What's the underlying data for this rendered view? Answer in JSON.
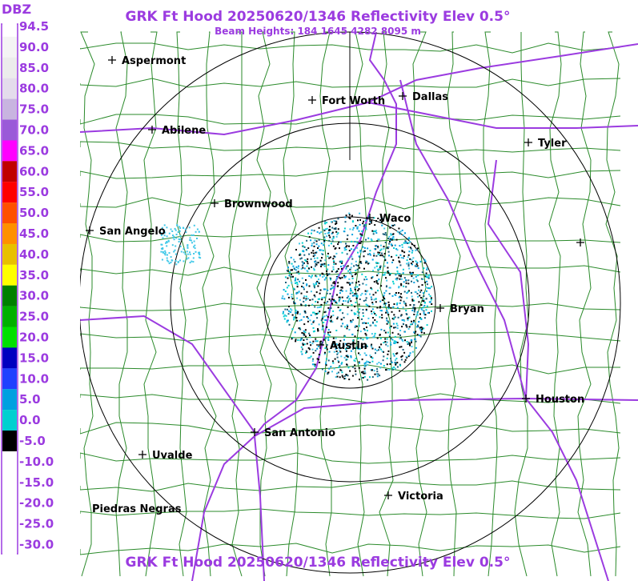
{
  "header": {
    "title": "GRK Ft Hood 20250620/1346 Reflectivity Elev 0.5°",
    "subtitle": "Beam Heights: 184 1645 4282 8095 m",
    "footer": "GRK Ft Hood 20250620/1346 Reflectivity Elev 0.5°"
  },
  "legend": {
    "title": "DBZ",
    "items": [
      {
        "label": "94.5",
        "color": "#ffffff"
      },
      {
        "label": "90.0",
        "color": "#f4f4f4"
      },
      {
        "label": "85.0",
        "color": "#ececec"
      },
      {
        "label": "80.0",
        "color": "#e4dcec"
      },
      {
        "label": "75.0",
        "color": "#c8b4e0"
      },
      {
        "label": "70.0",
        "color": "#9a5ad8"
      },
      {
        "label": "65.0",
        "color": "#ff00ff"
      },
      {
        "label": "60.0",
        "color": "#c00000"
      },
      {
        "label": "55.0",
        "color": "#ff0000"
      },
      {
        "label": "50.0",
        "color": "#ff5000"
      },
      {
        "label": "45.0",
        "color": "#ff9000"
      },
      {
        "label": "40.0",
        "color": "#e8c000"
      },
      {
        "label": "35.0",
        "color": "#ffff00"
      },
      {
        "label": "30.0",
        "color": "#008000"
      },
      {
        "label": "25.0",
        "color": "#00b000"
      },
      {
        "label": "20.0",
        "color": "#00e000"
      },
      {
        "label": "15.0",
        "color": "#0000c0"
      },
      {
        "label": "10.0",
        "color": "#2040ff"
      },
      {
        "label": "5.0",
        "color": "#00a0e0"
      },
      {
        "label": "0.0",
        "color": "#00d0d0"
      },
      {
        "label": "-5.0",
        "color": "#000000"
      },
      {
        "label": "-10.0",
        "color": "#ffffff"
      },
      {
        "label": "-15.0",
        "color": "#ffffff"
      },
      {
        "label": "-20.0",
        "color": "#ffffff"
      },
      {
        "label": "-25.0",
        "color": "#ffffff"
      },
      {
        "label": "-30.0",
        "color": "#ffffff"
      }
    ]
  },
  "cities": [
    {
      "name": "Aspermont"
    },
    {
      "name": "Fort Worth"
    },
    {
      "name": "Dallas"
    },
    {
      "name": "Abilene"
    },
    {
      "name": "Tyler"
    },
    {
      "name": "Brownwood"
    },
    {
      "name": "Waco"
    },
    {
      "name": "San Angelo"
    },
    {
      "name": "Bryan"
    },
    {
      "name": "Austin"
    },
    {
      "name": "Houston"
    },
    {
      "name": "San Antonio"
    },
    {
      "name": "Uvalde"
    },
    {
      "name": "Victoria"
    },
    {
      "name": "Piedras Negras"
    }
  ]
}
